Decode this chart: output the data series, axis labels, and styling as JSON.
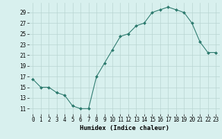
{
  "x": [
    0,
    1,
    2,
    3,
    4,
    5,
    6,
    7,
    8,
    9,
    10,
    11,
    12,
    13,
    14,
    15,
    16,
    17,
    18,
    19,
    20,
    21,
    22,
    23
  ],
  "y": [
    16.5,
    15.0,
    15.0,
    14.0,
    13.5,
    11.5,
    11.0,
    11.0,
    17.0,
    19.5,
    22.0,
    24.5,
    25.0,
    26.5,
    27.0,
    29.0,
    29.5,
    30.0,
    29.5,
    29.0,
    27.0,
    23.5,
    21.5,
    21.5
  ],
  "line_color": "#2d7a6e",
  "marker": "D",
  "marker_size": 2.0,
  "bg_color": "#d8f0ee",
  "grid_color": "#b8d4d0",
  "xlabel": "Humidex (Indice chaleur)",
  "xlabel_fontsize": 6.5,
  "tick_fontsize": 5.5,
  "xlim": [
    -0.5,
    23.5
  ],
  "ylim": [
    10.0,
    30.8
  ],
  "yticks": [
    11,
    13,
    15,
    17,
    19,
    21,
    23,
    25,
    27,
    29
  ],
  "xticks": [
    0,
    1,
    2,
    3,
    4,
    5,
    6,
    7,
    8,
    9,
    10,
    11,
    12,
    13,
    14,
    15,
    16,
    17,
    18,
    19,
    20,
    21,
    22,
    23
  ]
}
